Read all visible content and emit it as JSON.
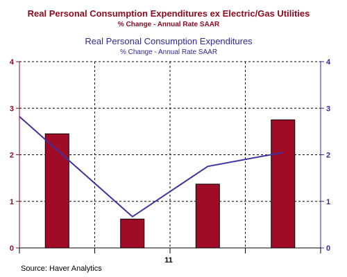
{
  "chart_data": {
    "type": "bar",
    "title": "Real Personal Consumption Expenditures ex Electric/Gas Utilities",
    "subtitle": "% Change - Annual Rate   SAAR",
    "title2": "Real Personal Consumption Expenditures",
    "subtitle2": "% Change - Annual Rate   SAAR",
    "x_tick_label": "11",
    "ylim": [
      0,
      4
    ],
    "y_ticks": [
      "0",
      "1",
      "2",
      "3",
      "4"
    ],
    "y_ticks_right": [
      "0",
      "1",
      "2",
      "3",
      "4"
    ],
    "grid": true,
    "source": "Source: Haver Analytics",
    "series": [
      {
        "type": "bar",
        "color": "#a00c28",
        "values": [
          2.45,
          0.62,
          1.37,
          2.75
        ]
      },
      {
        "type": "line",
        "color": "#3a35a0",
        "points": [
          [
            -0.5,
            2.82
          ],
          [
            1.0,
            0.67
          ],
          [
            2.0,
            1.75
          ],
          [
            3.0,
            2.05
          ]
        ]
      }
    ]
  }
}
